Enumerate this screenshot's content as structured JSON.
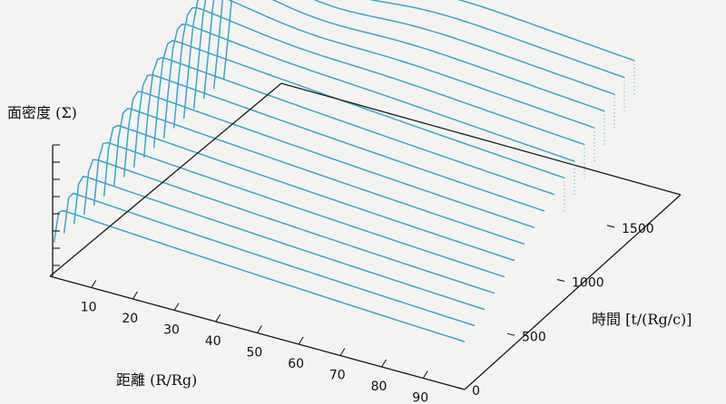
{
  "chart_data": {
    "type": "surface-waterfall",
    "title": "",
    "xlabel": "距離 (R/Rg)",
    "ylabel": "時間 [t/(Rg/c)]",
    "zlabel": "面密度 (Σ)",
    "x_ticks": [
      "10",
      "20",
      "30",
      "40",
      "50",
      "60",
      "70",
      "80",
      "90"
    ],
    "y_ticks": [
      "0",
      "500",
      "1000",
      "1500"
    ],
    "x_range": [
      0,
      100
    ],
    "y_range": [
      0,
      1800
    ],
    "line_color": "#3aa6c8",
    "axis_color": "#1a1a1a",
    "series_times": [
      0,
      100,
      200,
      300,
      400,
      500,
      600,
      700,
      800,
      900,
      1000,
      1100,
      1200,
      1300,
      1400,
      1500,
      1600,
      1700
    ]
  }
}
